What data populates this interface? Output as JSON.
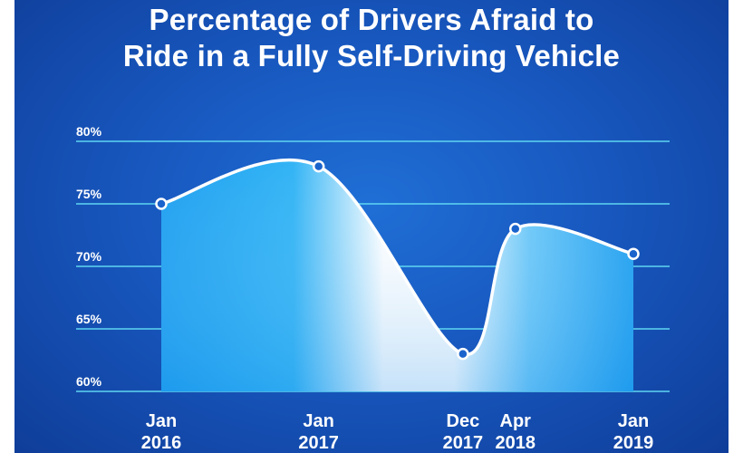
{
  "chart_data": {
    "type": "area",
    "title_line1": "Percentage of Drivers Afraid to",
    "title_line2": "Ride in a Fully Self-Driving Vehicle",
    "categories": [
      [
        "Jan",
        "2016"
      ],
      [
        "Jan",
        "2017"
      ],
      [
        "Dec",
        "2017"
      ],
      [
        "Apr",
        "2018"
      ],
      [
        "Jan",
        "2019"
      ]
    ],
    "x_months": [
      0,
      12,
      23,
      27,
      36
    ],
    "values": [
      75,
      78,
      63,
      73,
      71
    ],
    "value_unit": "%",
    "ylim": [
      60,
      80
    ],
    "yticks": [
      80,
      75,
      70,
      65,
      60
    ],
    "ytick_labels": [
      "80%",
      "75%",
      "70%",
      "65%",
      "60%"
    ],
    "grid": true,
    "colors": {
      "background": "#1858bf",
      "fill_light": "#ffffff",
      "fill_accent": "#1fa0f0",
      "line": "#ffffff",
      "grid": "#5fd6f2",
      "marker_fill": "#1a63cc"
    }
  }
}
